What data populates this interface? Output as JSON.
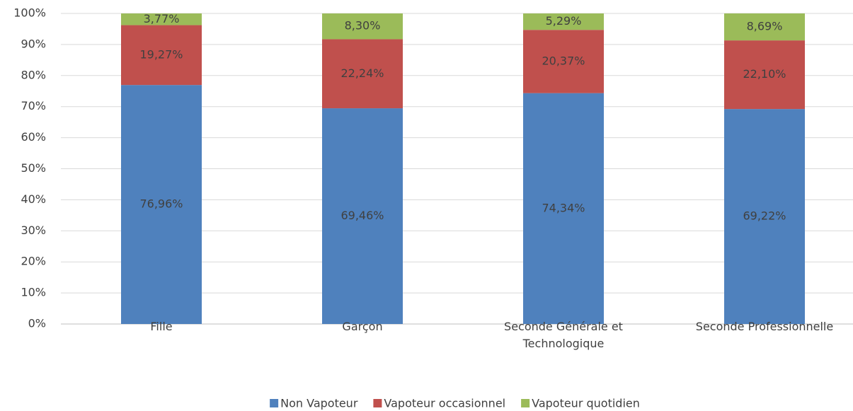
{
  "chart_data": {
    "type": "stacked_bar",
    "categories": [
      "Fille",
      "Garçon",
      "Seconde Générale et Technologique",
      "Seconde Professionnelle"
    ],
    "series": [
      {
        "name": "Non Vapoteur",
        "color": "#4f81bd",
        "values": [
          76.96,
          69.46,
          74.34,
          69.22
        ],
        "value_labels": [
          "76,96%",
          "69,46%",
          "74,34%",
          "69,22%"
        ]
      },
      {
        "name": "Vapoteur occasionnel",
        "color": "#c0504d",
        "values": [
          19.27,
          22.24,
          20.37,
          22.1
        ],
        "value_labels": [
          "19,27%",
          "22,24%",
          "20,37%",
          "22,10%"
        ]
      },
      {
        "name": "Vapoteur quotidien",
        "color": "#9bbb59",
        "values": [
          3.77,
          8.3,
          5.29,
          8.69
        ],
        "value_labels": [
          "3,77%",
          "8,30%",
          "5,29%",
          "8,69%"
        ]
      }
    ],
    "ylim": [
      0,
      100
    ],
    "yticks": [
      {
        "value": 0,
        "label": "0%"
      },
      {
        "value": 10,
        "label": "10%"
      },
      {
        "value": 20,
        "label": "20%"
      },
      {
        "value": 30,
        "label": "30%"
      },
      {
        "value": 40,
        "label": "40%"
      },
      {
        "value": 50,
        "label": "50%"
      },
      {
        "value": 60,
        "label": "60%"
      },
      {
        "value": 70,
        "label": "70%"
      },
      {
        "value": 80,
        "label": "80%"
      },
      {
        "value": 90,
        "label": "90%"
      },
      {
        "value": 100,
        "label": "100%"
      }
    ],
    "grid": true,
    "legend": "bottom"
  }
}
